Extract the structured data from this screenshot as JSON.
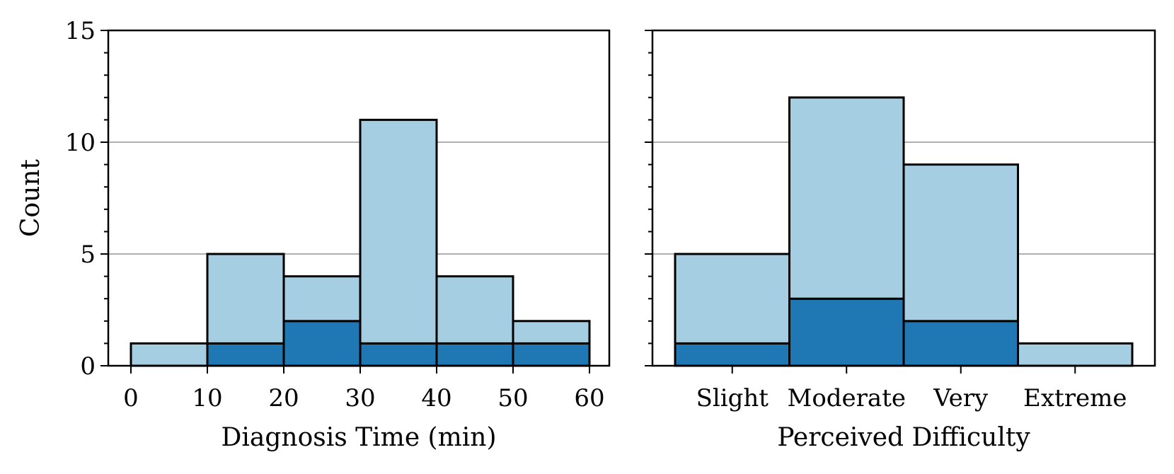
{
  "chart_data": [
    {
      "type": "bar",
      "subtype": "stacked-histogram",
      "xlabel": "Diagnosis Time (min)",
      "ylabel": "Count",
      "bin_edges": [
        0,
        10,
        20,
        30,
        40,
        50,
        60
      ],
      "xticks": [
        "0",
        "10",
        "20",
        "30",
        "40",
        "50",
        "60"
      ],
      "ylim": [
        0,
        15
      ],
      "yticks": [
        "0",
        "5",
        "10",
        "15"
      ],
      "grid": "horizontal",
      "series": [
        {
          "color": "#1f77b4",
          "values": [
            0,
            1,
            2,
            1,
            1,
            1
          ]
        },
        {
          "color": "#a6cee3",
          "values": [
            1,
            4,
            2,
            10,
            3,
            1
          ]
        }
      ]
    },
    {
      "type": "bar",
      "subtype": "stacked-histogram",
      "xlabel": "Perceived Difficulty",
      "ylabel": "",
      "categories": [
        "Slight",
        "Moderate",
        "Very",
        "Extreme"
      ],
      "ylim": [
        0,
        15
      ],
      "grid": "horizontal",
      "series": [
        {
          "color": "#1f77b4",
          "values": [
            1,
            3,
            2,
            0
          ]
        },
        {
          "color": "#a6cee3",
          "values": [
            4,
            9,
            7,
            1
          ]
        }
      ]
    }
  ]
}
